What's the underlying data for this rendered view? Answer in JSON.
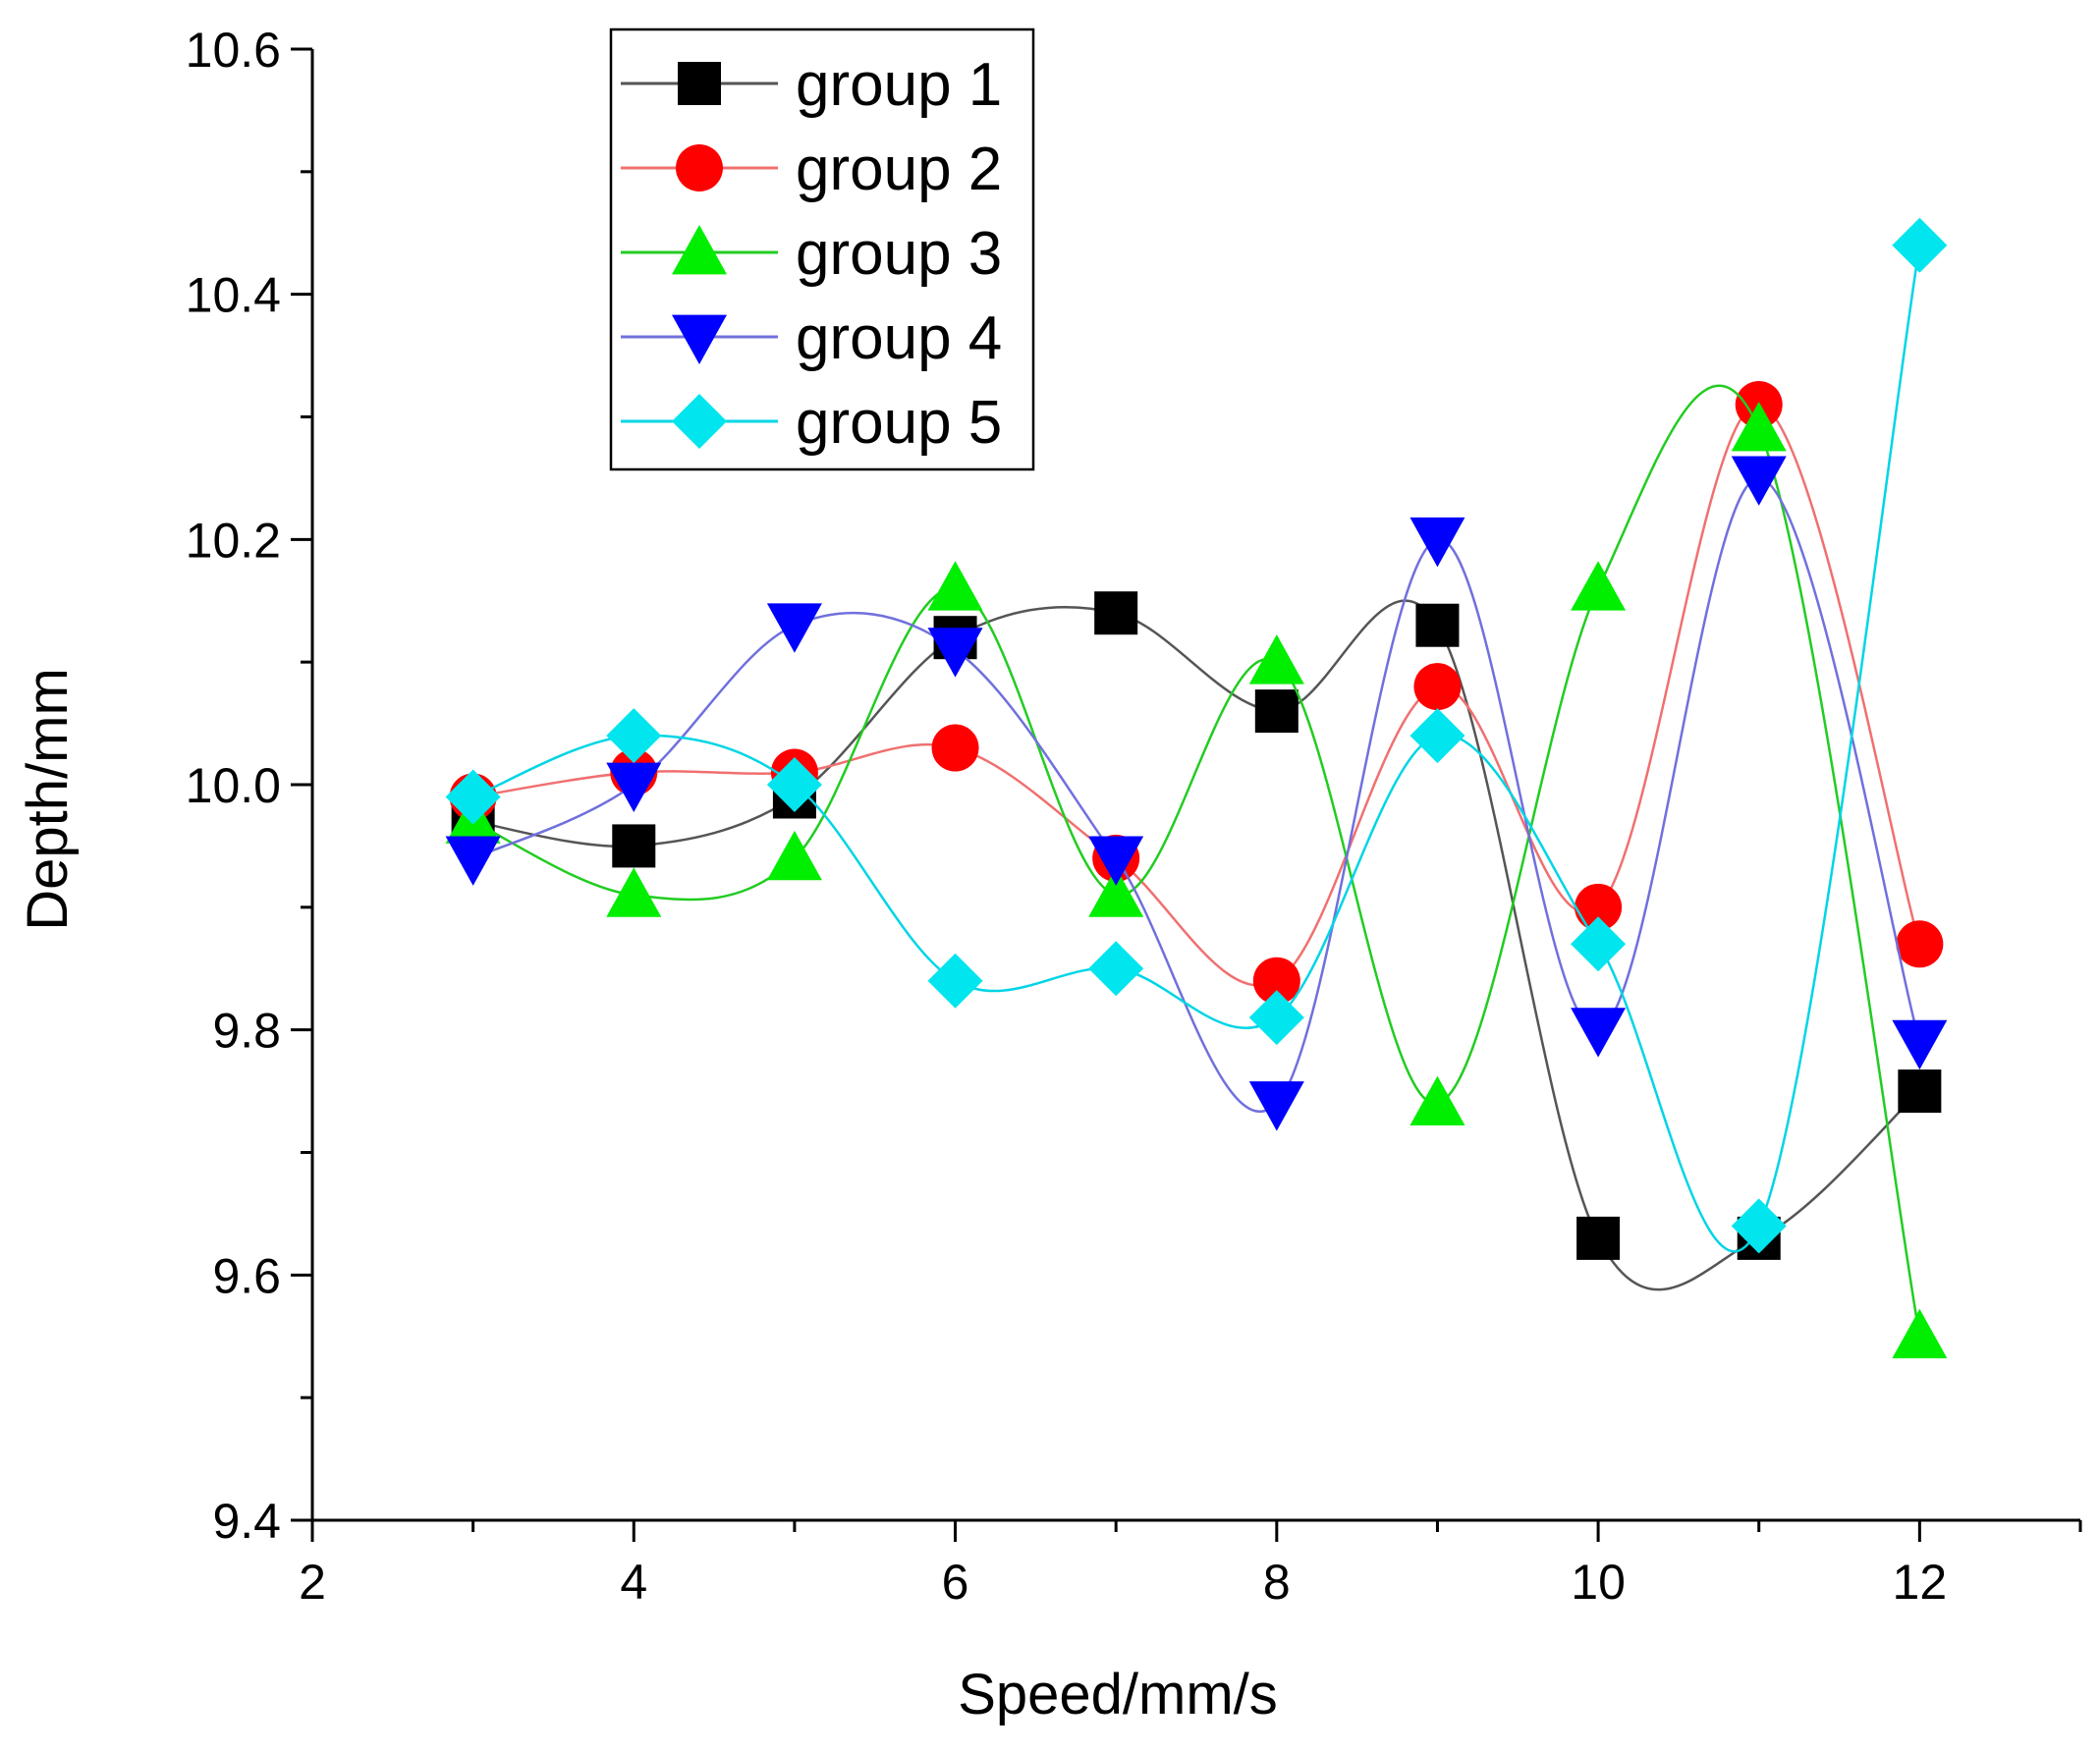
{
  "chart_data": {
    "type": "line",
    "title": "",
    "xlabel": "Speed/mm/s",
    "ylabel": "Depth/mm",
    "xlim": [
      2,
      13
    ],
    "ylim": [
      9.4,
      10.6
    ],
    "xticks": [
      2,
      4,
      6,
      8,
      10,
      12
    ],
    "xtick_labels": [
      "2",
      "4",
      "6",
      "8",
      "10",
      "12"
    ],
    "yticks": [
      9.4,
      9.6,
      9.8,
      10.0,
      10.2,
      10.4,
      10.6
    ],
    "ytick_labels": [
      "9.4",
      "9.6",
      "9.8",
      "10.0",
      "10.2",
      "10.4",
      "10.6"
    ],
    "grid": false,
    "legend_position": "top-left",
    "x": [
      3,
      4,
      5,
      6,
      7,
      8,
      9,
      10,
      11,
      12
    ],
    "series": [
      {
        "name": "group 1",
        "marker": "square",
        "color": "#000000",
        "line_color": "#555555",
        "values": [
          9.97,
          9.95,
          9.99,
          10.12,
          10.14,
          10.06,
          10.13,
          9.63,
          9.63,
          9.75
        ]
      },
      {
        "name": "group 2",
        "marker": "circle",
        "color": "#ff0000",
        "line_color": "#f07070",
        "values": [
          9.99,
          10.01,
          10.01,
          10.03,
          9.94,
          9.84,
          10.08,
          9.9,
          10.31,
          9.87
        ]
      },
      {
        "name": "group 3",
        "marker": "triangle-up",
        "color": "#00ee00",
        "line_color": "#22cc22",
        "values": [
          9.97,
          9.91,
          9.94,
          10.16,
          9.91,
          10.1,
          9.74,
          10.16,
          10.29,
          9.55
        ]
      },
      {
        "name": "group 4",
        "marker": "triangle-down",
        "color": "#0000ff",
        "line_color": "#7070dd",
        "values": [
          9.94,
          10.0,
          10.13,
          10.11,
          9.94,
          9.74,
          10.2,
          9.8,
          10.25,
          9.79
        ]
      },
      {
        "name": "group 5",
        "marker": "diamond",
        "color": "#00e5ee",
        "line_color": "#00d5e5",
        "values": [
          9.99,
          10.04,
          10.0,
          9.84,
          9.85,
          9.81,
          10.04,
          9.87,
          9.64,
          10.44
        ]
      }
    ]
  }
}
